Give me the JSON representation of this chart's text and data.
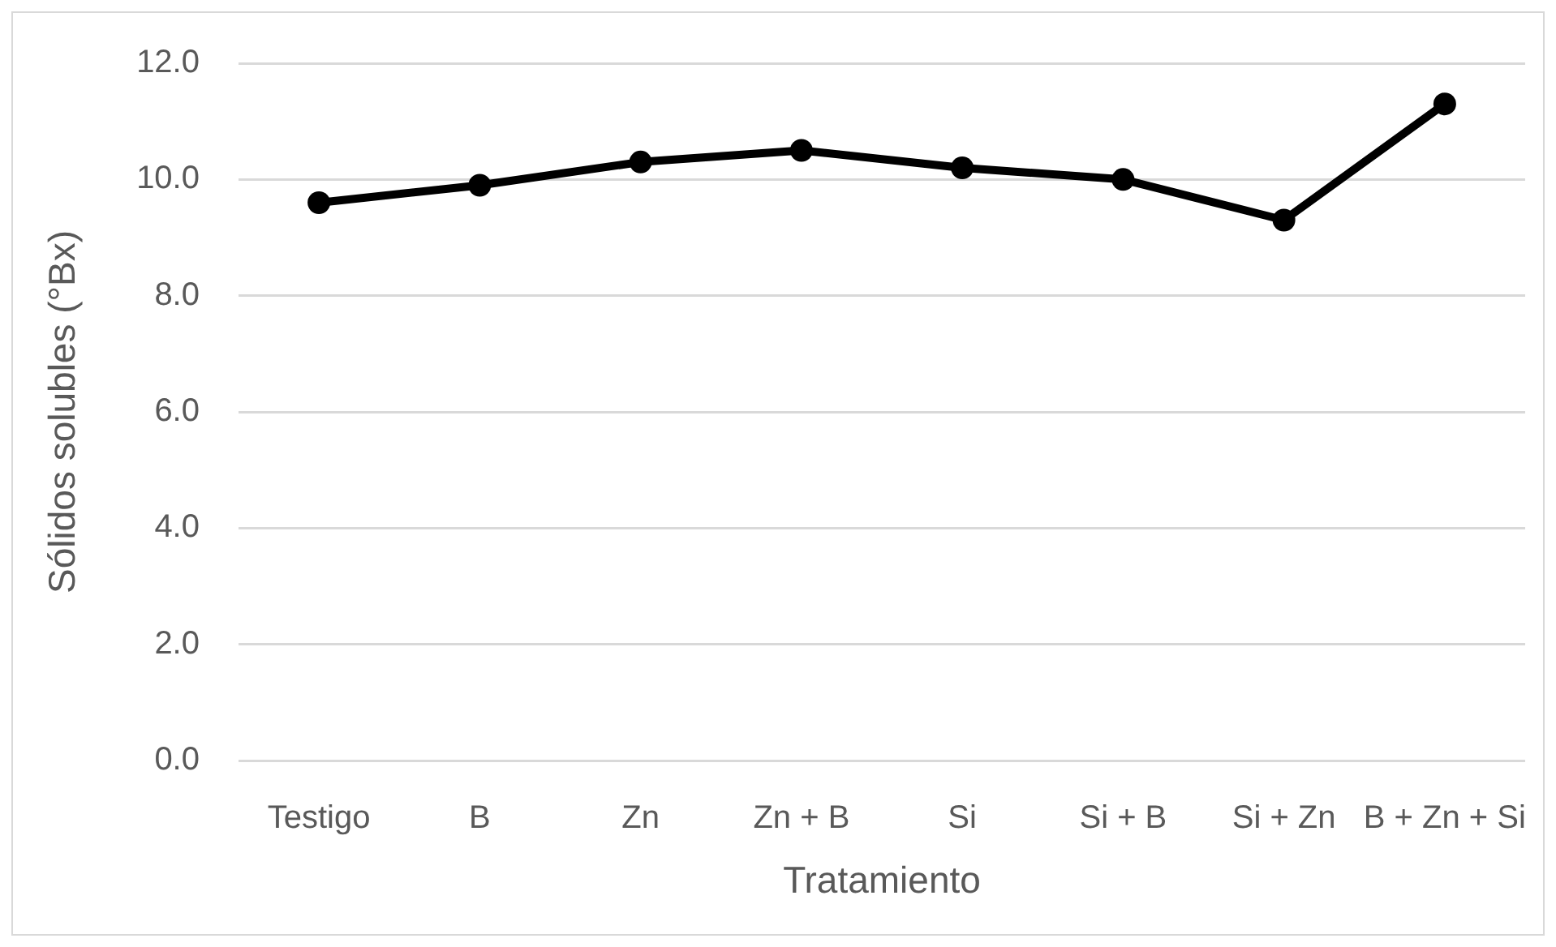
{
  "chart_data": {
    "type": "line",
    "xlabel": "Tratamiento",
    "ylabel": "Sólidos solubles (°Bx)",
    "categories": [
      "Testigo",
      "B",
      "Zn",
      "Zn + B",
      "Si",
      "Si + B",
      "Si + Zn",
      "B + Zn + Si"
    ],
    "series": [
      {
        "color": "#000000",
        "values": [
          9.6,
          9.9,
          10.3,
          10.5,
          10.2,
          10.0,
          9.3,
          11.3
        ]
      }
    ],
    "ylim": [
      0,
      12
    ],
    "yticks": [
      {
        "value": 0,
        "label": "0.0"
      },
      {
        "value": 2,
        "label": "2.0"
      },
      {
        "value": 4,
        "label": "4.0"
      },
      {
        "value": 6,
        "label": "6.0"
      },
      {
        "value": 8,
        "label": "8.0"
      },
      {
        "value": 10,
        "label": "10.0"
      },
      {
        "value": 12,
        "label": "12.0"
      }
    ],
    "grid": "y",
    "legend": false,
    "marker": "circle",
    "line_style": "solid"
  }
}
